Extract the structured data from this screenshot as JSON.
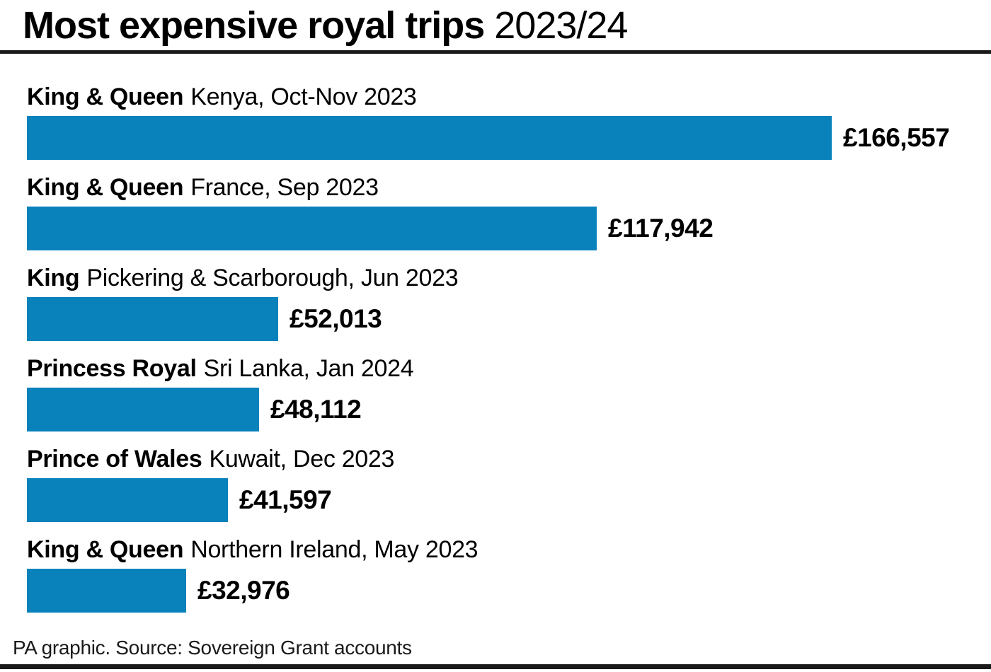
{
  "title": {
    "bold": "Most expensive royal trips",
    "regular": "2023/24"
  },
  "footer": {
    "source": "PA graphic. Source: Sovereign Grant accounts"
  },
  "colors": {
    "bar": "#0982BC",
    "rule": "#1a1a1a",
    "text": "#000000"
  },
  "chart_data": {
    "type": "bar",
    "orientation": "horizontal",
    "title": "Most expensive royal trips 2023/24",
    "unit": "GBP",
    "xlim": [
      0,
      166557
    ],
    "grid": false,
    "legend": false,
    "value_labels_position": "right-of-bar",
    "rows": [
      {
        "who": "King & Queen",
        "trip": "Kenya, Oct-Nov 2023",
        "value": 166557,
        "label": "£166,557"
      },
      {
        "who": "King & Queen",
        "trip": "France, Sep 2023",
        "value": 117942,
        "label": "£117,942"
      },
      {
        "who": "King",
        "trip": "Pickering & Scarborough, Jun 2023",
        "value": 52013,
        "label": "£52,013"
      },
      {
        "who": "Princess Royal",
        "trip": "Sri Lanka, Jan 2024",
        "value": 48112,
        "label": "£48,112"
      },
      {
        "who": "Prince of Wales",
        "trip": "Kuwait, Dec 2023",
        "value": 41597,
        "label": "£41,597"
      },
      {
        "who": "King & Queen",
        "trip": "Northern Ireland, May 2023",
        "value": 32976,
        "label": "£32,976"
      }
    ],
    "source": "PA graphic. Source: Sovereign Grant accounts"
  }
}
